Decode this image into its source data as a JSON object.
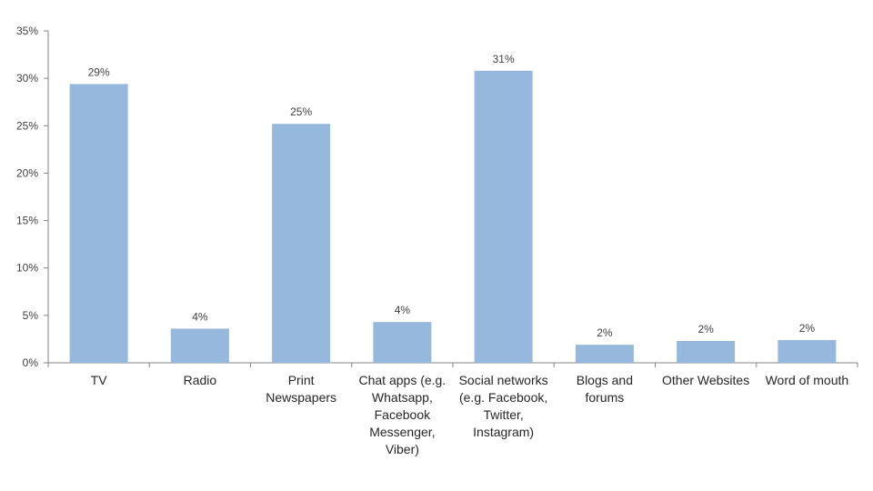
{
  "chart_data": {
    "type": "bar",
    "title": "",
    "xlabel": "",
    "ylabel": "",
    "ylim": [
      0,
      35
    ],
    "y_ticks": [
      "0%",
      "5%",
      "10%",
      "15%",
      "20%",
      "25%",
      "30%",
      "35%"
    ],
    "grid": false,
    "legend": "none",
    "bar_color": "#95B8DC",
    "categories": [
      {
        "lines": [
          "TV"
        ]
      },
      {
        "lines": [
          "Radio"
        ]
      },
      {
        "lines": [
          "Print",
          "Newspapers"
        ]
      },
      {
        "lines": [
          "Chat apps (e.g.",
          "Whatsapp,",
          "Facebook",
          "Messenger,",
          "Viber)"
        ]
      },
      {
        "lines": [
          "Social networks",
          "(e.g. Facebook,",
          "Twitter,",
          "Instagram)"
        ]
      },
      {
        "lines": [
          "Blogs and",
          "forums"
        ]
      },
      {
        "lines": [
          "Other Websites"
        ]
      },
      {
        "lines": [
          "Word of mouth"
        ]
      }
    ],
    "values": [
      29.4,
      3.6,
      25.2,
      4.3,
      30.8,
      1.9,
      2.3,
      2.4
    ],
    "data_labels": [
      "29%",
      "4%",
      "25%",
      "4%",
      "31%",
      "2%",
      "2%",
      "2%"
    ]
  }
}
